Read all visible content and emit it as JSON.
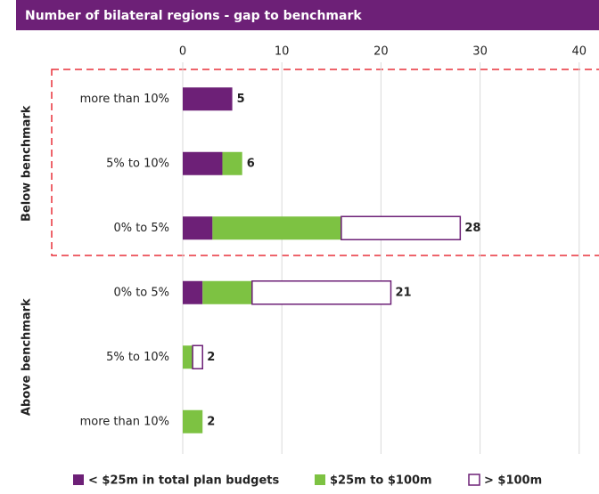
{
  "chart_data": {
    "type": "stacked-barh",
    "title": "Number of bilateral regions - gap to benchmark",
    "groups": [
      "Below benchmark",
      "Above benchmark"
    ],
    "categories": [
      "more than 10%",
      "5% to 10%",
      "0% to 5%",
      "0% to 5%",
      "5% to 10%",
      "more than 10%"
    ],
    "series": [
      {
        "name": "< $25m in total plan budgets",
        "color": "#6d2077",
        "values": [
          5,
          4,
          3,
          2,
          0,
          0
        ]
      },
      {
        "name": "$25m to $100m",
        "color": "#7dc242",
        "values": [
          0,
          2,
          13,
          5,
          1,
          2
        ]
      },
      {
        "name": "> $100m",
        "color": "#ffffff",
        "stroke": "#6d2077",
        "values": [
          0,
          0,
          12,
          14,
          1,
          0
        ]
      }
    ],
    "totals": [
      5,
      6,
      28,
      21,
      2,
      2
    ],
    "xlim": [
      0,
      42
    ],
    "xticks": [
      0,
      10,
      20,
      30,
      40
    ],
    "grid": true
  }
}
